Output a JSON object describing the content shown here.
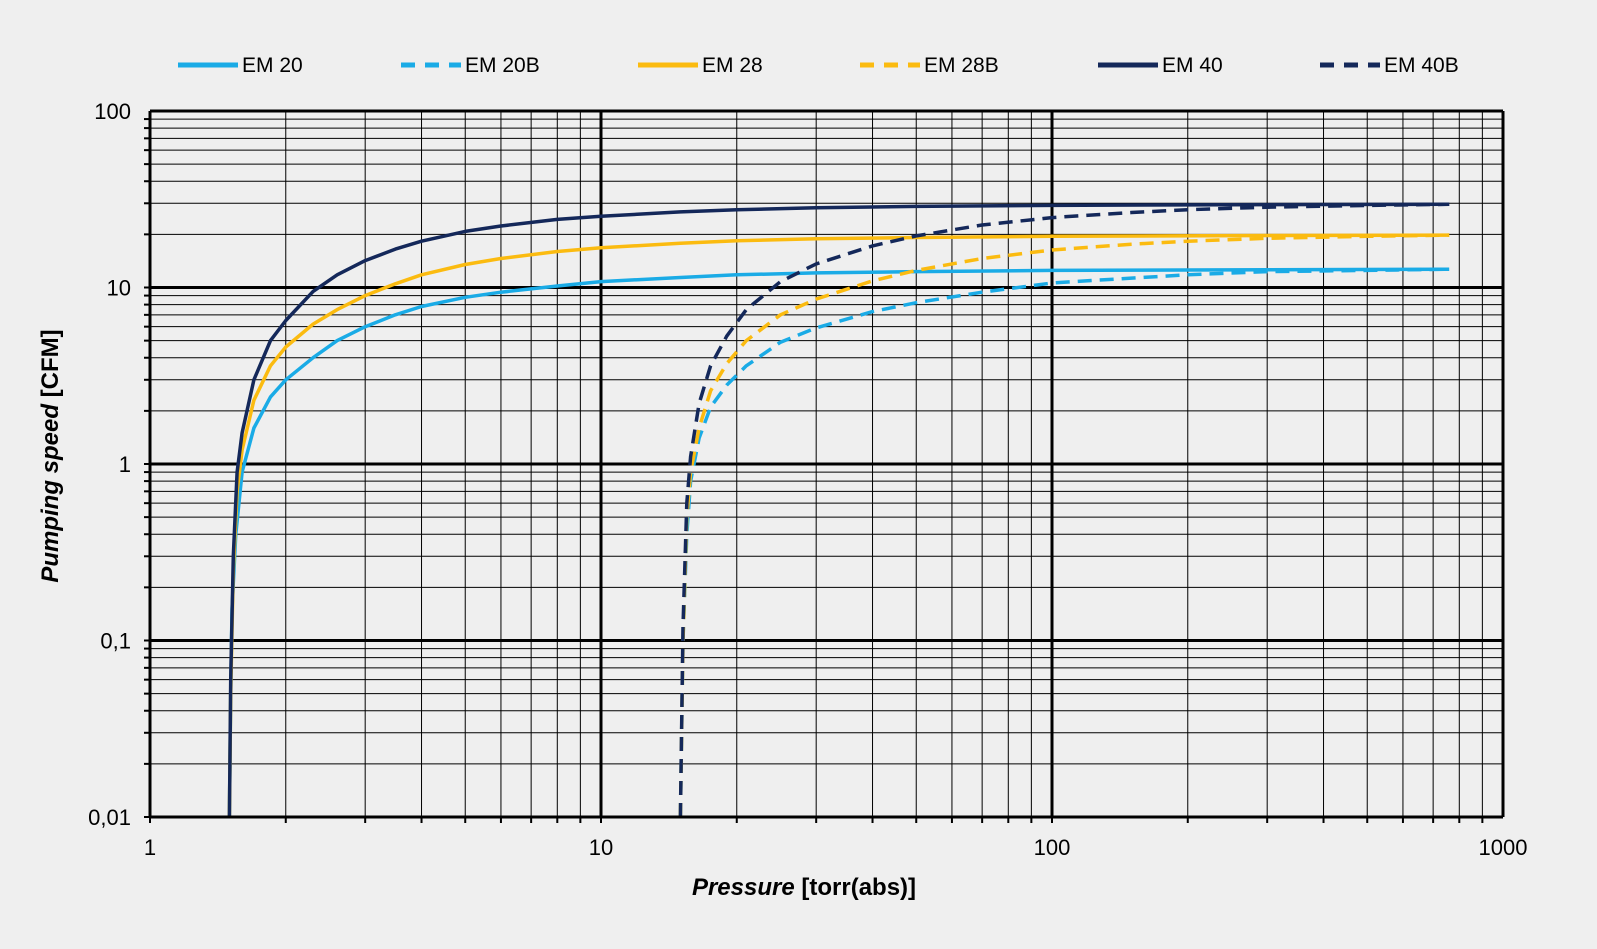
{
  "chart_data": {
    "type": "line",
    "xlabel": {
      "italic": "Pressure",
      "rest": " [torr(abs)]"
    },
    "ylabel": {
      "italic": "Pumping speed",
      "rest": " [CFM]"
    },
    "x_scale": "log",
    "y_scale": "log",
    "xlim": [
      1,
      1000
    ],
    "ylim": [
      0.01,
      100
    ],
    "x_ticks": [
      {
        "value": 1,
        "label": "1"
      },
      {
        "value": 10,
        "label": "10"
      },
      {
        "value": 100,
        "label": "100"
      },
      {
        "value": 1000,
        "label": "1000"
      }
    ],
    "y_ticks": [
      {
        "value": 0.01,
        "label": "0,01"
      },
      {
        "value": 0.1,
        "label": "0,1"
      },
      {
        "value": 1,
        "label": "1"
      },
      {
        "value": 10,
        "label": "10"
      },
      {
        "value": 100,
        "label": "100"
      }
    ],
    "grid": true,
    "legend_position": "top",
    "series": [
      {
        "name": "EM 20",
        "color": "#1aabe6",
        "dashed": false,
        "points": [
          [
            1.5,
            0.01
          ],
          [
            1.51,
            0.05
          ],
          [
            1.52,
            0.15
          ],
          [
            1.55,
            0.4
          ],
          [
            1.6,
            0.9
          ],
          [
            1.7,
            1.6
          ],
          [
            1.85,
            2.4
          ],
          [
            2.0,
            3.0
          ],
          [
            2.3,
            4.0
          ],
          [
            2.6,
            5.0
          ],
          [
            3.0,
            6.0
          ],
          [
            3.5,
            7.0
          ],
          [
            4.0,
            7.8
          ],
          [
            5.0,
            8.8
          ],
          [
            6.0,
            9.4
          ],
          [
            8.0,
            10.2
          ],
          [
            10.0,
            10.8
          ],
          [
            15.0,
            11.4
          ],
          [
            20.0,
            11.8
          ],
          [
            30.0,
            12.1
          ],
          [
            50.0,
            12.3
          ],
          [
            100.0,
            12.5
          ],
          [
            300.0,
            12.6
          ],
          [
            760.0,
            12.7
          ]
        ]
      },
      {
        "name": "EM 20B",
        "color": "#1aabe6",
        "dashed": true,
        "points": [
          [
            15.0,
            0.01
          ],
          [
            15.2,
            0.1
          ],
          [
            15.5,
            0.4
          ],
          [
            15.8,
            0.8
          ],
          [
            16.5,
            1.4
          ],
          [
            17.5,
            2.1
          ],
          [
            19.0,
            2.8
          ],
          [
            21.0,
            3.6
          ],
          [
            25.0,
            4.9
          ],
          [
            30.0,
            5.9
          ],
          [
            40.0,
            7.3
          ],
          [
            50.0,
            8.2
          ],
          [
            70.0,
            9.4
          ],
          [
            100.0,
            10.6
          ],
          [
            150.0,
            11.3
          ],
          [
            200.0,
            11.8
          ],
          [
            300.0,
            12.3
          ],
          [
            500.0,
            12.5
          ],
          [
            760.0,
            12.7
          ]
        ]
      },
      {
        "name": "EM 28",
        "color": "#fbbb10",
        "dashed": false,
        "points": [
          [
            1.5,
            0.01
          ],
          [
            1.51,
            0.05
          ],
          [
            1.53,
            0.25
          ],
          [
            1.56,
            0.7
          ],
          [
            1.6,
            1.2
          ],
          [
            1.7,
            2.3
          ],
          [
            1.85,
            3.6
          ],
          [
            2.0,
            4.6
          ],
          [
            2.3,
            6.2
          ],
          [
            2.6,
            7.5
          ],
          [
            3.0,
            9.0
          ],
          [
            3.5,
            10.5
          ],
          [
            4.0,
            11.8
          ],
          [
            5.0,
            13.5
          ],
          [
            6.0,
            14.6
          ],
          [
            8.0,
            16.0
          ],
          [
            10.0,
            16.8
          ],
          [
            15.0,
            17.8
          ],
          [
            20.0,
            18.4
          ],
          [
            30.0,
            18.9
          ],
          [
            50.0,
            19.2
          ],
          [
            100.0,
            19.5
          ],
          [
            300.0,
            19.7
          ],
          [
            760.0,
            19.8
          ]
        ]
      },
      {
        "name": "EM 28B",
        "color": "#fbbb10",
        "dashed": true,
        "points": [
          [
            15.0,
            0.01
          ],
          [
            15.2,
            0.1
          ],
          [
            15.5,
            0.5
          ],
          [
            15.8,
            0.9
          ],
          [
            16.5,
            1.6
          ],
          [
            17.5,
            2.6
          ],
          [
            19.0,
            3.7
          ],
          [
            21.0,
            5.0
          ],
          [
            25.0,
            7.0
          ],
          [
            30.0,
            8.6
          ],
          [
            40.0,
            10.9
          ],
          [
            50.0,
            12.5
          ],
          [
            70.0,
            14.6
          ],
          [
            100.0,
            16.3
          ],
          [
            150.0,
            17.6
          ],
          [
            200.0,
            18.3
          ],
          [
            300.0,
            19.0
          ],
          [
            500.0,
            19.5
          ],
          [
            760.0,
            19.8
          ]
        ]
      },
      {
        "name": "EM 40",
        "color": "#14285a",
        "dashed": false,
        "points": [
          [
            1.5,
            0.01
          ],
          [
            1.51,
            0.06
          ],
          [
            1.53,
            0.3
          ],
          [
            1.56,
            0.9
          ],
          [
            1.6,
            1.5
          ],
          [
            1.7,
            3.0
          ],
          [
            1.85,
            5.0
          ],
          [
            2.0,
            6.5
          ],
          [
            2.3,
            9.5
          ],
          [
            2.6,
            11.8
          ],
          [
            3.0,
            14.2
          ],
          [
            3.5,
            16.5
          ],
          [
            4.0,
            18.3
          ],
          [
            5.0,
            20.8
          ],
          [
            6.0,
            22.3
          ],
          [
            8.0,
            24.3
          ],
          [
            10.0,
            25.3
          ],
          [
            15.0,
            26.8
          ],
          [
            20.0,
            27.6
          ],
          [
            30.0,
            28.3
          ],
          [
            50.0,
            28.8
          ],
          [
            100.0,
            29.2
          ],
          [
            300.0,
            29.5
          ],
          [
            760.0,
            29.6
          ]
        ]
      },
      {
        "name": "EM 40B",
        "color": "#14285a",
        "dashed": true,
        "points": [
          [
            15.0,
            0.01
          ],
          [
            15.2,
            0.12
          ],
          [
            15.5,
            0.6
          ],
          [
            15.8,
            1.1
          ],
          [
            16.5,
            2.2
          ],
          [
            17.5,
            3.6
          ],
          [
            19.0,
            5.3
          ],
          [
            21.0,
            7.5
          ],
          [
            25.0,
            10.8
          ],
          [
            30.0,
            13.6
          ],
          [
            40.0,
            17.2
          ],
          [
            50.0,
            19.6
          ],
          [
            70.0,
            22.6
          ],
          [
            100.0,
            24.9
          ],
          [
            150.0,
            26.6
          ],
          [
            200.0,
            27.6
          ],
          [
            300.0,
            28.5
          ],
          [
            500.0,
            29.2
          ],
          [
            760.0,
            29.6
          ]
        ]
      }
    ]
  }
}
